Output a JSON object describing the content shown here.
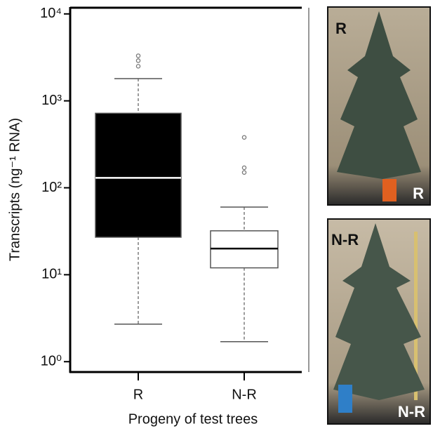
{
  "chart_data": {
    "type": "box",
    "yscale": "log",
    "ylabel": "Transcripts (ng⁻¹ RNA)",
    "xlabel": "Progeny of test trees",
    "categories": [
      "R",
      "N-R"
    ],
    "boxes": [
      {
        "whisker_low": 2.7,
        "q1": 27,
        "median": 130,
        "q3": 720,
        "whisker_high": 1800,
        "outliers": [
          2500,
          2900,
          3300
        ],
        "fill": "#000000",
        "median_color": "#ffffff"
      },
      {
        "whisker_low": 1.7,
        "q1": 12,
        "median": 20,
        "q3": 32,
        "whisker_high": 60,
        "outliers": [
          150,
          170,
          380
        ],
        "fill": "#ffffff",
        "median_color": "#000000"
      }
    ],
    "ylim": [
      0.76,
      12000
    ],
    "yticks": [
      {
        "value": 1,
        "label": "10⁰"
      },
      {
        "value": 10,
        "label": "10¹"
      },
      {
        "value": 100,
        "label": "10²"
      },
      {
        "value": 1000,
        "label": "10³"
      },
      {
        "value": 10000,
        "label": "10⁴"
      }
    ]
  },
  "photos": [
    {
      "label": "R",
      "corner_label": "R"
    },
    {
      "label": "N-R",
      "corner_label": "N-R"
    }
  ]
}
